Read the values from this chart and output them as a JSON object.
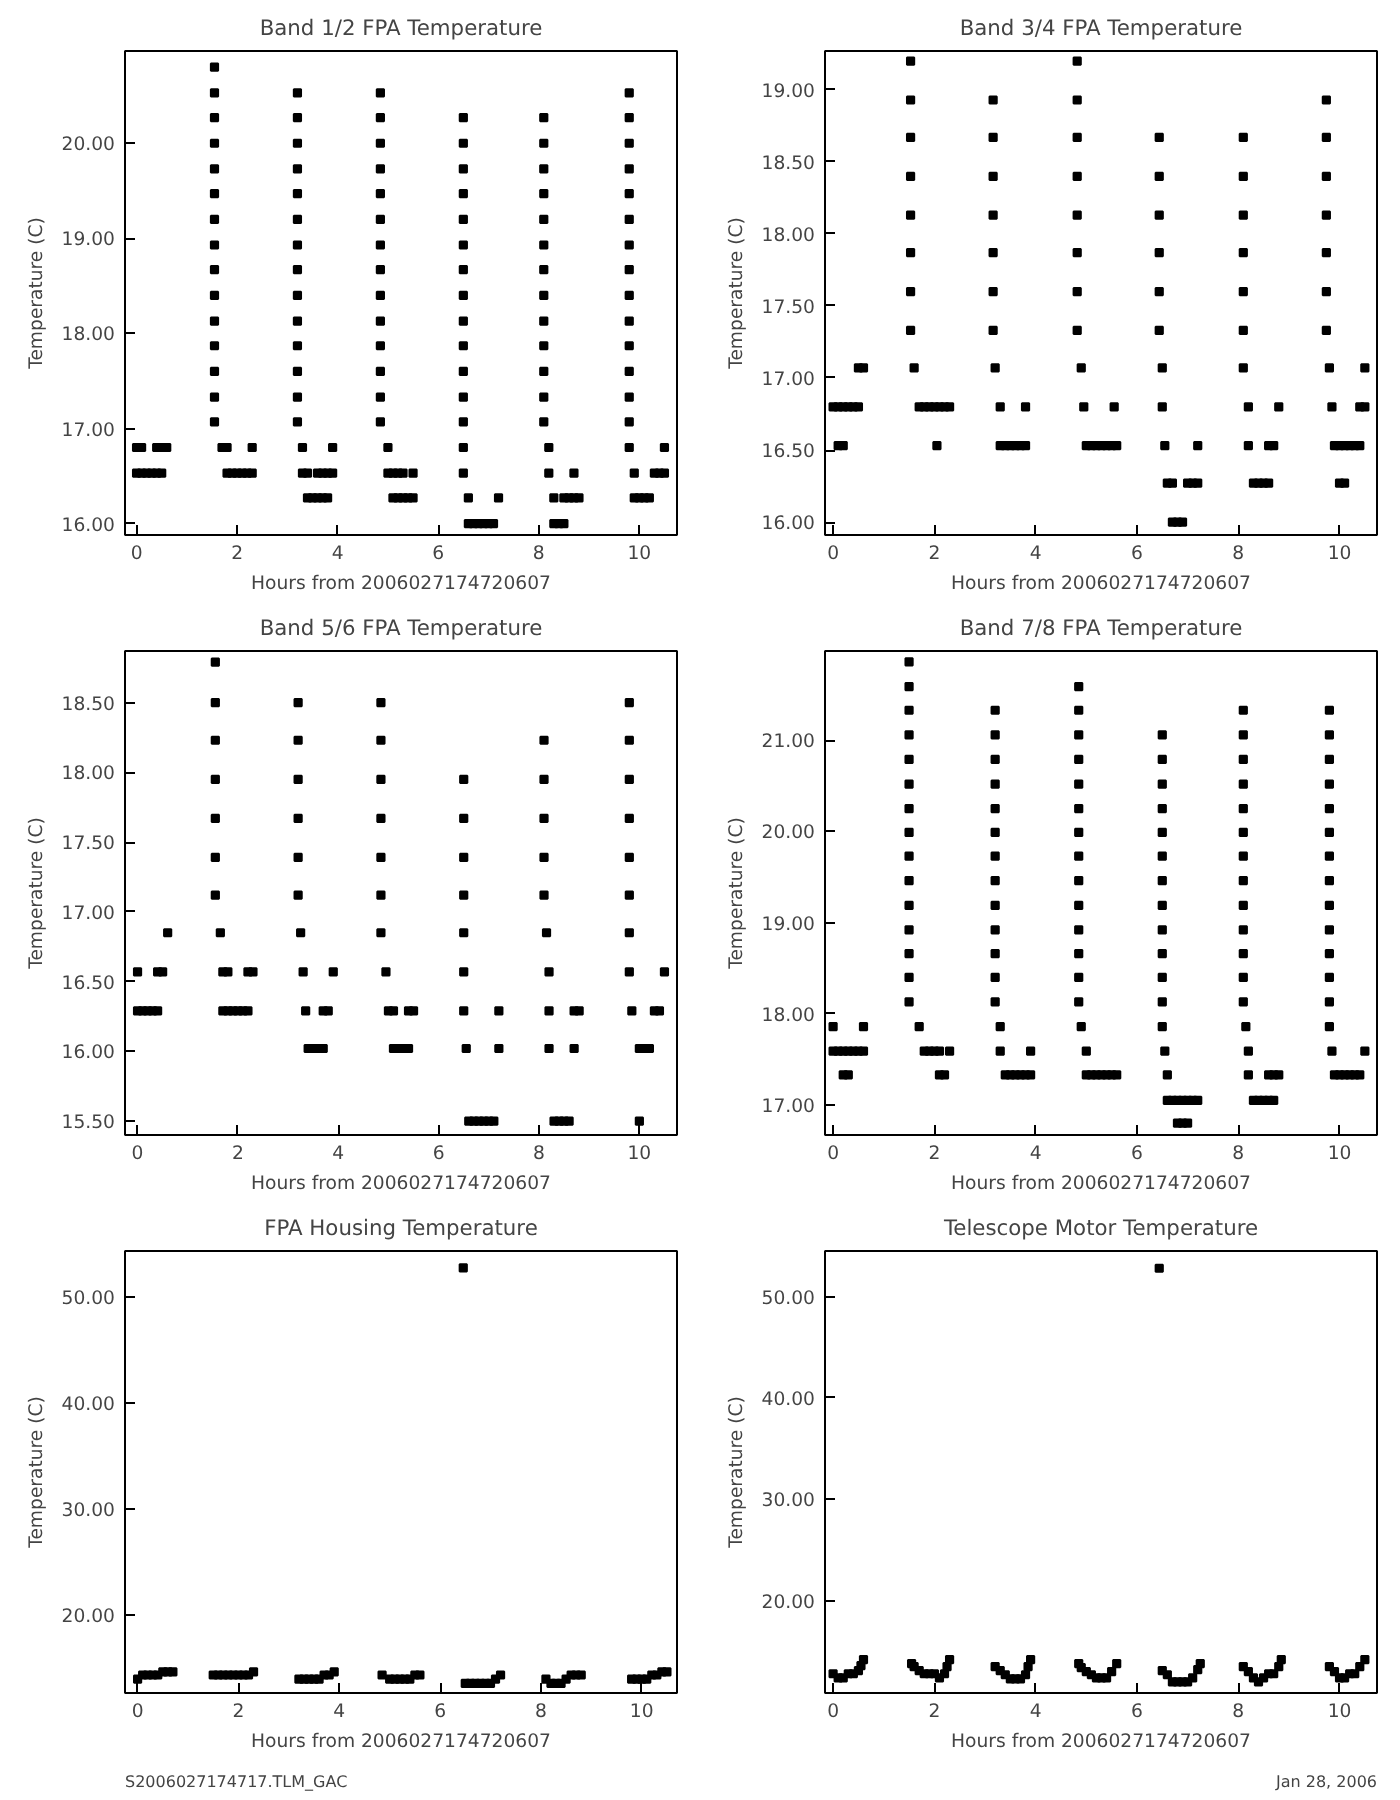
{
  "chart_data": [
    {
      "type": "scatter",
      "title": "Band 1/2 FPA Temperature",
      "xlabel": "Hours from 2006027174720607",
      "ylabel": "Temperature (C)",
      "marker": "square",
      "grid": false,
      "xlim": [
        -0.23,
        10.75
      ],
      "xticks": [
        0,
        2,
        4,
        6,
        8,
        10
      ],
      "ylim": [
        15.88,
        20.97
      ],
      "yticks": [
        {
          "value": 16,
          "label": "16.00"
        },
        {
          "value": 17,
          "label": "17.00"
        },
        {
          "value": 18,
          "label": "18.00"
        },
        {
          "value": 19,
          "label": "19.00"
        },
        {
          "value": 20,
          "label": "20.00"
        }
      ],
      "series": [
        {
          "color": "#000000",
          "x": [
            0,
            0.1,
            0.4,
            0.5,
            0.6,
            1.7,
            1.8,
            2.3,
            3.3,
            3.9,
            5.0,
            6.5,
            8.2,
            9.8,
            10.5,
            0,
            0.1,
            0.2,
            0.3,
            0.4,
            0.5,
            1.8,
            1.9,
            2.0,
            2.1,
            2.2,
            2.3,
            3.3,
            3.4,
            3.6,
            3.7,
            3.8,
            3.9,
            5.0,
            5.1,
            5.2,
            5.3,
            5.5,
            6.5,
            8.2,
            8.7,
            9.9,
            10.3,
            10.4,
            10.5,
            3.4,
            3.5,
            3.6,
            3.7,
            3.8,
            5.1,
            5.2,
            5.3,
            5.4,
            5.5,
            6.6,
            7.2,
            8.3,
            8.5,
            8.6,
            8.7,
            8.8,
            9.9,
            10.0,
            10.1,
            10.2,
            6.6,
            6.7,
            6.8,
            6.9,
            7.0,
            7.1,
            8.3,
            8.4,
            8.5,
            1.55,
            1.55,
            1.55,
            1.55,
            1.55,
            1.55,
            1.55,
            1.55,
            1.55,
            1.55,
            1.55,
            1.55,
            1.55,
            1.55,
            1.55,
            3.2,
            3.2,
            3.2,
            3.2,
            3.2,
            3.2,
            3.2,
            3.2,
            3.2,
            3.2,
            3.2,
            3.2,
            3.2,
            3.2,
            4.85,
            4.85,
            4.85,
            4.85,
            4.85,
            4.85,
            4.85,
            4.85,
            4.85,
            4.85,
            4.85,
            4.85,
            4.85,
            4.85,
            6.5,
            6.5,
            6.5,
            6.5,
            6.5,
            6.5,
            6.5,
            6.5,
            6.5,
            6.5,
            6.5,
            6.5,
            6.5,
            8.1,
            8.1,
            8.1,
            8.1,
            8.1,
            8.1,
            8.1,
            8.1,
            8.1,
            8.1,
            8.1,
            8.1,
            8.1,
            9.8,
            9.8,
            9.8,
            9.8,
            9.8,
            9.8,
            9.8,
            9.8,
            9.8,
            9.8,
            9.8,
            9.8,
            9.8,
            9.8
          ],
          "values": [
            16.8,
            16.8,
            16.8,
            16.8,
            16.8,
            16.8,
            16.8,
            16.8,
            16.8,
            16.8,
            16.8,
            16.8,
            16.8,
            16.8,
            16.8,
            16.53,
            16.53,
            16.53,
            16.53,
            16.53,
            16.53,
            16.53,
            16.53,
            16.53,
            16.53,
            16.53,
            16.53,
            16.53,
            16.53,
            16.53,
            16.53,
            16.53,
            16.53,
            16.53,
            16.53,
            16.53,
            16.53,
            16.53,
            16.53,
            16.53,
            16.53,
            16.53,
            16.53,
            16.53,
            16.53,
            16.27,
            16.27,
            16.27,
            16.27,
            16.27,
            16.27,
            16.27,
            16.27,
            16.27,
            16.27,
            16.27,
            16.27,
            16.27,
            16.27,
            16.27,
            16.27,
            16.27,
            16.27,
            16.27,
            16.27,
            16.27,
            16.0,
            16.0,
            16.0,
            16.0,
            16.0,
            16.0,
            16.0,
            16.0,
            16.0,
            17.07,
            17.33,
            17.6,
            17.87,
            18.13,
            18.4,
            18.67,
            18.93,
            19.2,
            19.47,
            19.73,
            20.0,
            20.27,
            20.53,
            20.8,
            17.07,
            17.33,
            17.6,
            17.87,
            18.13,
            18.4,
            18.67,
            18.93,
            19.2,
            19.47,
            19.73,
            20.0,
            20.27,
            20.53,
            17.07,
            17.33,
            17.6,
            17.87,
            18.13,
            18.4,
            18.67,
            18.93,
            19.2,
            19.47,
            19.73,
            20.0,
            20.27,
            20.53,
            17.07,
            17.33,
            17.6,
            17.87,
            18.13,
            18.4,
            18.67,
            18.93,
            19.2,
            19.47,
            19.73,
            20.0,
            20.27,
            17.07,
            17.33,
            17.6,
            17.87,
            18.13,
            18.4,
            18.67,
            18.93,
            19.2,
            19.47,
            19.73,
            20.0,
            20.27,
            17.07,
            17.33,
            17.6,
            17.87,
            18.13,
            18.4,
            18.67,
            18.93,
            19.2,
            19.47,
            19.73,
            20.0,
            20.27,
            20.53
          ]
        }
      ]
    },
    {
      "type": "scatter",
      "title": "Band 3/4 FPA Temperature",
      "xlabel": "Hours from 2006027174720607",
      "ylabel": "Temperature (C)",
      "marker": "square",
      "grid": false,
      "xlim": [
        -0.16,
        10.74
      ],
      "xticks": [
        0,
        2,
        4,
        6,
        8,
        10
      ],
      "ylim": [
        15.91,
        19.27
      ],
      "yticks": [
        {
          "value": 16,
          "label": "16.00"
        },
        {
          "value": 16.5,
          "label": "16.50"
        },
        {
          "value": 17,
          "label": "17.00"
        },
        {
          "value": 17.5,
          "label": "17.50"
        },
        {
          "value": 18,
          "label": "18.00"
        },
        {
          "value": 18.5,
          "label": "18.50"
        },
        {
          "value": 19,
          "label": "19.00"
        }
      ],
      "series": [
        {
          "color": "#000000",
          "x": [
            0.5,
            0.6,
            1.6,
            3.2,
            4.9,
            6.5,
            8.1,
            9.8,
            10.5,
            0,
            0.1,
            0.2,
            0.3,
            0.4,
            0.5,
            1.7,
            1.8,
            1.9,
            2.0,
            2.1,
            2.2,
            2.3,
            3.3,
            3.8,
            4.95,
            5.55,
            6.5,
            8.2,
            8.8,
            9.85,
            10.4,
            10.5,
            0.1,
            0.2,
            2.05,
            3.3,
            3.4,
            3.5,
            3.6,
            3.7,
            3.8,
            5.0,
            5.1,
            5.2,
            5.3,
            5.4,
            5.5,
            5.6,
            6.55,
            7.2,
            8.2,
            8.6,
            8.7,
            9.9,
            10.0,
            10.1,
            10.2,
            10.3,
            10.4,
            6.6,
            6.7,
            7.0,
            7.1,
            7.2,
            8.3,
            8.4,
            8.5,
            8.6,
            10.0,
            10.1,
            6.7,
            6.8,
            6.9,
            1.53,
            1.53,
            1.53,
            1.53,
            1.53,
            1.53,
            1.53,
            1.53,
            3.16,
            3.16,
            3.16,
            3.16,
            3.16,
            3.16,
            3.16,
            4.82,
            4.82,
            4.82,
            4.82,
            4.82,
            4.82,
            4.82,
            4.82,
            6.44,
            6.44,
            6.44,
            6.44,
            6.44,
            6.44,
            8.1,
            8.1,
            8.1,
            8.1,
            8.1,
            8.1,
            9.74,
            9.74,
            9.74,
            9.74,
            9.74,
            9.74,
            9.74
          ],
          "values": [
            17.07,
            17.07,
            17.07,
            17.07,
            17.07,
            17.07,
            17.07,
            17.07,
            17.07,
            16.8,
            16.8,
            16.8,
            16.8,
            16.8,
            16.8,
            16.8,
            16.8,
            16.8,
            16.8,
            16.8,
            16.8,
            16.8,
            16.8,
            16.8,
            16.8,
            16.8,
            16.8,
            16.8,
            16.8,
            16.8,
            16.8,
            16.8,
            16.53,
            16.53,
            16.53,
            16.53,
            16.53,
            16.53,
            16.53,
            16.53,
            16.53,
            16.53,
            16.53,
            16.53,
            16.53,
            16.53,
            16.53,
            16.53,
            16.53,
            16.53,
            16.53,
            16.53,
            16.53,
            16.53,
            16.53,
            16.53,
            16.53,
            16.53,
            16.53,
            16.27,
            16.27,
            16.27,
            16.27,
            16.27,
            16.27,
            16.27,
            16.27,
            16.27,
            16.27,
            16.27,
            16.0,
            16.0,
            16.0,
            17.33,
            17.6,
            17.87,
            18.13,
            18.4,
            18.67,
            18.93,
            19.2,
            17.33,
            17.6,
            17.87,
            18.13,
            18.4,
            18.67,
            18.93,
            17.33,
            17.6,
            17.87,
            18.13,
            18.4,
            18.67,
            18.93,
            19.2,
            17.33,
            17.6,
            17.87,
            18.13,
            18.4,
            18.67,
            17.33,
            17.6,
            17.87,
            18.13,
            18.4,
            18.67,
            17.33,
            17.6,
            17.87,
            18.13,
            18.4,
            18.67,
            18.93
          ]
        }
      ]
    },
    {
      "type": "scatter",
      "title": "Band 5/6 FPA Temperature",
      "xlabel": "Hours from 2006027174720607",
      "ylabel": "Temperature (C)",
      "marker": "square",
      "grid": false,
      "xlim": [
        -0.25,
        10.75
      ],
      "xticks": [
        0,
        2,
        4,
        6,
        8,
        10
      ],
      "ylim": [
        15.4,
        18.87
      ],
      "yticks": [
        {
          "value": 15.5,
          "label": "15.50"
        },
        {
          "value": 16,
          "label": "16.00"
        },
        {
          "value": 16.5,
          "label": "16.50"
        },
        {
          "value": 17,
          "label": "17.00"
        },
        {
          "value": 17.5,
          "label": "17.50"
        },
        {
          "value": 18,
          "label": "18.00"
        },
        {
          "value": 18.5,
          "label": "18.50"
        }
      ],
      "series": [
        {
          "color": "#000000",
          "x": [
            0.6,
            1.65,
            3.25,
            4.85,
            6.5,
            8.15,
            9.8,
            0,
            0.4,
            0.5,
            1.7,
            1.8,
            2.2,
            2.3,
            3.3,
            3.9,
            4.95,
            6.5,
            8.2,
            9.8,
            10.5,
            0,
            0.1,
            0.2,
            0.3,
            0.4,
            1.7,
            1.8,
            1.9,
            2.0,
            2.1,
            2.2,
            3.35,
            3.7,
            3.8,
            5.0,
            5.1,
            5.4,
            5.5,
            6.5,
            7.2,
            8.2,
            8.7,
            8.8,
            9.85,
            10.3,
            10.4,
            3.4,
            3.5,
            3.6,
            3.7,
            5.1,
            5.2,
            5.3,
            5.4,
            6.55,
            7.2,
            8.2,
            8.7,
            10.0,
            10.1,
            10.2,
            6.6,
            6.7,
            6.8,
            6.9,
            7.0,
            7.1,
            8.3,
            8.4,
            8.5,
            8.6,
            10.0,
            1.55,
            1.55,
            1.55,
            1.55,
            1.55,
            1.55,
            1.55,
            3.2,
            3.2,
            3.2,
            3.2,
            3.2,
            3.2,
            4.85,
            4.85,
            4.85,
            4.85,
            4.85,
            4.85,
            6.5,
            6.5,
            6.5,
            6.5,
            8.1,
            8.1,
            8.1,
            8.1,
            8.1,
            9.8,
            9.8,
            9.8,
            9.8,
            9.8,
            9.8
          ],
          "values": [
            16.85,
            16.85,
            16.85,
            16.85,
            16.85,
            16.85,
            16.85,
            16.57,
            16.57,
            16.57,
            16.57,
            16.57,
            16.57,
            16.57,
            16.57,
            16.57,
            16.57,
            16.57,
            16.57,
            16.57,
            16.57,
            16.29,
            16.29,
            16.29,
            16.29,
            16.29,
            16.29,
            16.29,
            16.29,
            16.29,
            16.29,
            16.29,
            16.29,
            16.29,
            16.29,
            16.29,
            16.29,
            16.29,
            16.29,
            16.29,
            16.29,
            16.29,
            16.29,
            16.29,
            16.29,
            16.29,
            16.29,
            16.02,
            16.02,
            16.02,
            16.02,
            16.02,
            16.02,
            16.02,
            16.02,
            16.02,
            16.02,
            16.02,
            16.02,
            16.02,
            16.02,
            16.02,
            15.5,
            15.5,
            15.5,
            15.5,
            15.5,
            15.5,
            15.5,
            15.5,
            15.5,
            15.5,
            15.5,
            17.12,
            17.39,
            17.67,
            17.95,
            18.23,
            18.5,
            18.79,
            17.12,
            17.39,
            17.67,
            17.95,
            18.23,
            18.5,
            17.12,
            17.39,
            17.67,
            17.95,
            18.23,
            18.5,
            17.12,
            17.39,
            17.67,
            17.95,
            17.12,
            17.39,
            17.67,
            17.95,
            18.23,
            17.12,
            17.39,
            17.67,
            17.95,
            18.23,
            18.5
          ]
        }
      ]
    },
    {
      "type": "scatter",
      "title": "Band 7/8 FPA Temperature",
      "xlabel": "Hours from 2006027174720607",
      "ylabel": "Temperature (C)",
      "marker": "square",
      "grid": false,
      "xlim": [
        -0.16,
        10.74
      ],
      "xticks": [
        0,
        2,
        4,
        6,
        8,
        10
      ],
      "ylim": [
        16.67,
        21.98
      ],
      "yticks": [
        {
          "value": 17,
          "label": "17.00"
        },
        {
          "value": 18,
          "label": "18.00"
        },
        {
          "value": 19,
          "label": "19.00"
        },
        {
          "value": 20,
          "label": "20.00"
        },
        {
          "value": 21,
          "label": "21.00"
        }
      ],
      "series": [
        {
          "color": "#000000",
          "x": [
            0,
            0.6,
            1.7,
            3.3,
            4.9,
            6.5,
            8.15,
            9.8,
            0,
            0.1,
            0.2,
            0.3,
            0.4,
            0.5,
            0.6,
            1.8,
            1.9,
            2.0,
            2.1,
            2.3,
            3.3,
            3.9,
            5.0,
            6.55,
            8.2,
            9.85,
            10.5,
            0.2,
            0.3,
            2.1,
            2.2,
            3.4,
            3.5,
            3.6,
            3.7,
            3.8,
            3.9,
            5.0,
            5.1,
            5.2,
            5.3,
            5.4,
            5.5,
            5.6,
            6.6,
            8.2,
            8.6,
            8.7,
            8.8,
            9.9,
            10.0,
            10.1,
            10.2,
            10.3,
            10.4,
            6.6,
            6.7,
            6.8,
            6.9,
            7.0,
            7.1,
            7.2,
            8.3,
            8.4,
            8.5,
            8.6,
            8.7,
            6.8,
            6.9,
            7.0,
            1.5,
            1.5,
            1.5,
            1.5,
            1.5,
            1.5,
            1.5,
            1.5,
            1.5,
            1.5,
            1.5,
            1.5,
            1.5,
            1.5,
            1.5,
            3.2,
            3.2,
            3.2,
            3.2,
            3.2,
            3.2,
            3.2,
            3.2,
            3.2,
            3.2,
            3.2,
            3.2,
            3.2,
            4.85,
            4.85,
            4.85,
            4.85,
            4.85,
            4.85,
            4.85,
            4.85,
            4.85,
            4.85,
            4.85,
            4.85,
            4.85,
            4.85,
            6.5,
            6.5,
            6.5,
            6.5,
            6.5,
            6.5,
            6.5,
            6.5,
            6.5,
            6.5,
            6.5,
            6.5,
            8.1,
            8.1,
            8.1,
            8.1,
            8.1,
            8.1,
            8.1,
            8.1,
            8.1,
            8.1,
            8.1,
            8.1,
            8.1,
            9.8,
            9.8,
            9.8,
            9.8,
            9.8,
            9.8,
            9.8,
            9.8,
            9.8,
            9.8,
            9.8,
            9.8,
            9.8
          ],
          "values": [
            17.86,
            17.86,
            17.86,
            17.86,
            17.86,
            17.86,
            17.86,
            17.86,
            17.59,
            17.59,
            17.59,
            17.59,
            17.59,
            17.59,
            17.59,
            17.59,
            17.59,
            17.59,
            17.59,
            17.59,
            17.59,
            17.59,
            17.59,
            17.59,
            17.59,
            17.59,
            17.59,
            17.33,
            17.33,
            17.33,
            17.33,
            17.33,
            17.33,
            17.33,
            17.33,
            17.33,
            17.33,
            17.33,
            17.33,
            17.33,
            17.33,
            17.33,
            17.33,
            17.33,
            17.33,
            17.33,
            17.33,
            17.33,
            17.33,
            17.33,
            17.33,
            17.33,
            17.33,
            17.33,
            17.33,
            17.05,
            17.05,
            17.05,
            17.05,
            17.05,
            17.05,
            17.05,
            17.05,
            17.05,
            17.05,
            17.05,
            17.05,
            16.8,
            16.8,
            16.8,
            18.13,
            18.4,
            18.66,
            18.92,
            19.19,
            19.46,
            19.73,
            19.99,
            20.25,
            20.52,
            20.79,
            21.06,
            21.33,
            21.59,
            21.86,
            18.13,
            18.4,
            18.66,
            18.92,
            19.19,
            19.46,
            19.73,
            19.99,
            20.25,
            20.52,
            20.79,
            21.06,
            21.33,
            18.13,
            18.4,
            18.66,
            18.92,
            19.19,
            19.46,
            19.73,
            19.99,
            20.25,
            20.52,
            20.79,
            21.06,
            21.33,
            21.59,
            18.13,
            18.4,
            18.66,
            18.92,
            19.19,
            19.46,
            19.73,
            19.99,
            20.25,
            20.52,
            20.79,
            21.06,
            18.13,
            18.4,
            18.66,
            18.92,
            19.19,
            19.46,
            19.73,
            19.99,
            20.25,
            20.52,
            20.79,
            21.06,
            21.33,
            18.13,
            18.4,
            18.66,
            18.92,
            19.19,
            19.46,
            19.73,
            19.99,
            20.25,
            20.52,
            20.79,
            21.06,
            21.33
          ]
        }
      ]
    },
    {
      "type": "scatter",
      "title": "FPA Housing Temperature",
      "xlabel": "Hours from 2006027174720607",
      "ylabel": "Temperature (C)",
      "marker": "square",
      "grid": false,
      "xlim": [
        -0.25,
        10.7
      ],
      "xticks": [
        0,
        2,
        4,
        6,
        8,
        10
      ],
      "ylim": [
        12.6,
        54.3
      ],
      "yticks": [
        {
          "value": 20,
          "label": "20.00"
        },
        {
          "value": 30,
          "label": "30.00"
        },
        {
          "value": 40,
          "label": "40.00"
        },
        {
          "value": 50,
          "label": "50.00"
        }
      ],
      "annotations": [
        "S2006027174717.TLM_GAC"
      ],
      "series": [
        {
          "color": "#000000",
          "x": [
            0,
            0.1,
            0.2,
            0.3,
            0.4,
            0.5,
            0.6,
            0.7,
            1.5,
            1.6,
            1.7,
            1.8,
            1.9,
            2.0,
            2.1,
            2.2,
            2.3,
            3.2,
            3.3,
            3.4,
            3.5,
            3.6,
            3.7,
            3.8,
            3.9,
            4.85,
            5.0,
            5.1,
            5.2,
            5.3,
            5.4,
            5.5,
            5.6,
            6.46,
            6.5,
            6.6,
            6.7,
            6.8,
            6.9,
            7.0,
            7.1,
            7.2,
            8.1,
            8.2,
            8.3,
            8.4,
            8.5,
            8.6,
            8.7,
            8.8,
            9.8,
            9.9,
            10.0,
            10.1,
            10.2,
            10.3,
            10.4,
            10.5
          ],
          "values": [
            13.9,
            14.3,
            14.3,
            14.3,
            14.3,
            14.6,
            14.6,
            14.6,
            14.3,
            14.3,
            14.3,
            14.3,
            14.3,
            14.3,
            14.3,
            14.3,
            14.6,
            13.9,
            13.9,
            13.9,
            13.9,
            13.9,
            14.3,
            14.3,
            14.6,
            14.3,
            13.9,
            13.9,
            13.9,
            13.9,
            13.9,
            14.3,
            14.3,
            52.7,
            13.5,
            13.5,
            13.5,
            13.5,
            13.5,
            13.5,
            13.9,
            14.3,
            13.9,
            13.5,
            13.5,
            13.5,
            13.9,
            14.3,
            14.3,
            14.3,
            13.9,
            13.9,
            13.9,
            13.9,
            14.3,
            14.3,
            14.6,
            14.6
          ]
        }
      ]
    },
    {
      "type": "scatter",
      "title": "Telescope Motor Temperature",
      "xlabel": "Hours from 2006027174720607",
      "ylabel": "Temperature (C)",
      "marker": "square",
      "grid": false,
      "xlim": [
        -0.16,
        10.74
      ],
      "xticks": [
        0,
        2,
        4,
        6,
        8,
        10
      ],
      "ylim": [
        10.9,
        54.5
      ],
      "yticks": [
        {
          "value": 20,
          "label": "20.00"
        },
        {
          "value": 30,
          "label": "30.00"
        },
        {
          "value": 40,
          "label": "40.00"
        },
        {
          "value": 50,
          "label": "50.00"
        }
      ],
      "annotations": [
        "Jan 28, 2006"
      ],
      "series": [
        {
          "color": "#000000",
          "x": [
            0,
            0.1,
            0.2,
            0.3,
            0.4,
            0.5,
            0.55,
            0.6,
            1.55,
            1.6,
            1.7,
            1.8,
            1.9,
            2.0,
            2.1,
            2.2,
            2.25,
            2.3,
            3.2,
            3.3,
            3.4,
            3.5,
            3.6,
            3.7,
            3.8,
            3.85,
            3.9,
            4.85,
            4.9,
            5.0,
            5.1,
            5.2,
            5.3,
            5.4,
            5.5,
            5.6,
            6.44,
            6.5,
            6.6,
            6.7,
            6.8,
            6.9,
            7.0,
            7.1,
            7.2,
            7.25,
            8.1,
            8.2,
            8.3,
            8.4,
            8.5,
            8.6,
            8.7,
            8.8,
            8.85,
            9.8,
            9.9,
            10.0,
            10.1,
            10.2,
            10.3,
            10.4,
            10.5
          ],
          "values": [
            12.8,
            12.4,
            12.4,
            12.8,
            12.8,
            13.1,
            13.6,
            14.2,
            13.8,
            13.5,
            13.1,
            12.8,
            12.8,
            12.8,
            12.4,
            12.8,
            13.5,
            14.2,
            13.5,
            13.1,
            12.7,
            12.3,
            12.3,
            12.3,
            12.7,
            13.5,
            14.2,
            13.8,
            13.4,
            13.0,
            12.7,
            12.4,
            12.4,
            12.4,
            13.0,
            13.8,
            52.8,
            13.1,
            12.7,
            12.0,
            12.0,
            12.0,
            12.0,
            12.4,
            13.2,
            13.8,
            13.5,
            13.0,
            12.4,
            12.0,
            12.4,
            12.8,
            12.8,
            13.5,
            14.2,
            13.5,
            13.0,
            12.4,
            12.4,
            12.8,
            12.8,
            13.5,
            14.2
          ]
        }
      ]
    }
  ]
}
